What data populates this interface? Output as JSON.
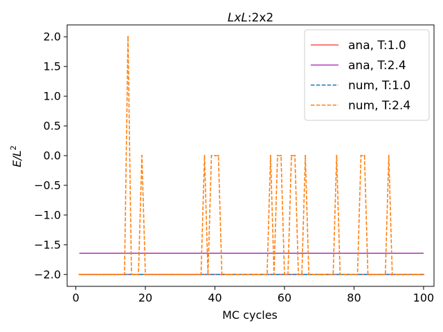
{
  "chart_data": {
    "type": "line",
    "title_italic": "LxL",
    "title_rest": ":2x2",
    "xlabel": "MC cycles",
    "ylabel_base": "E/L",
    "ylabel_sup": "2",
    "xlim": [
      -2.5,
      103
    ],
    "ylim": [
      -2.2,
      2.2
    ],
    "xticks": [
      0,
      20,
      40,
      60,
      80,
      100
    ],
    "xtick_labels": [
      "0",
      "20",
      "40",
      "60",
      "80",
      "100"
    ],
    "yticks": [
      2.0,
      1.5,
      1.0,
      0.5,
      0.0,
      -0.5,
      -1.0,
      -1.5,
      -2.0
    ],
    "ytick_labels": [
      "2.0",
      "1.5",
      "1.0",
      "0.5",
      "0.0",
      "−0.5",
      "−1.0",
      "−1.5",
      "−2.0"
    ],
    "legend_position": "top-right",
    "series": [
      {
        "name": "ana, T:1.0",
        "style": "solid",
        "color": "#ff4d4d",
        "x": [
          1,
          100
        ],
        "y": [
          -1.998,
          -1.998
        ]
      },
      {
        "name": "ana, T:2.4",
        "style": "solid",
        "color": "#b040b8",
        "x": [
          1,
          100
        ],
        "y": [
          -1.644,
          -1.644
        ]
      },
      {
        "name": "num, T:1.0",
        "style": "dashed",
        "color": "#1f77b4",
        "x": [
          1,
          100
        ],
        "y": [
          -2.0,
          -2.0
        ]
      },
      {
        "name": "num, T:2.4",
        "style": "dashed",
        "color": "#ff7f0e",
        "x": [
          1,
          2,
          3,
          4,
          5,
          6,
          7,
          8,
          9,
          10,
          11,
          12,
          13,
          14,
          15,
          16,
          17,
          18,
          19,
          20,
          21,
          22,
          23,
          24,
          25,
          26,
          27,
          28,
          29,
          30,
          31,
          32,
          33,
          34,
          35,
          36,
          37,
          38,
          39,
          40,
          41,
          42,
          43,
          44,
          45,
          46,
          47,
          48,
          49,
          50,
          51,
          52,
          53,
          54,
          55,
          56,
          57,
          58,
          59,
          60,
          61,
          62,
          63,
          64,
          65,
          66,
          67,
          68,
          69,
          70,
          71,
          72,
          73,
          74,
          75,
          76,
          77,
          78,
          79,
          80,
          81,
          82,
          83,
          84,
          85,
          86,
          87,
          88,
          89,
          90,
          91,
          92,
          93,
          94,
          95,
          96,
          97,
          98,
          99,
          100
        ],
        "y": [
          -2,
          -2,
          -2,
          -2,
          -2,
          -2,
          -2,
          -2,
          -2,
          -2,
          -2,
          -2,
          -2,
          -2,
          2,
          -2,
          -2,
          -2,
          0,
          -2,
          -2,
          -2,
          -2,
          -2,
          -2,
          -2,
          -2,
          -2,
          -2,
          -2,
          -2,
          -2,
          -2,
          -2,
          -2,
          -2,
          0,
          -2,
          0,
          0,
          0,
          -2,
          -2,
          -2,
          -2,
          -2,
          -2,
          -2,
          -2,
          -2,
          -2,
          -2,
          -2,
          -2,
          -2,
          0,
          -2,
          0,
          0,
          -2,
          -2,
          0,
          0,
          -2,
          -2,
          0,
          -2,
          -2,
          -2,
          -2,
          -2,
          -2,
          -2,
          -2,
          0,
          -2,
          -2,
          -2,
          -2,
          -2,
          -2,
          0,
          0,
          -2,
          -2,
          -2,
          -2,
          -2,
          -2,
          0,
          -2,
          -2,
          -2,
          -2,
          -2,
          -2,
          -2,
          -2,
          -2,
          -2
        ]
      }
    ]
  }
}
